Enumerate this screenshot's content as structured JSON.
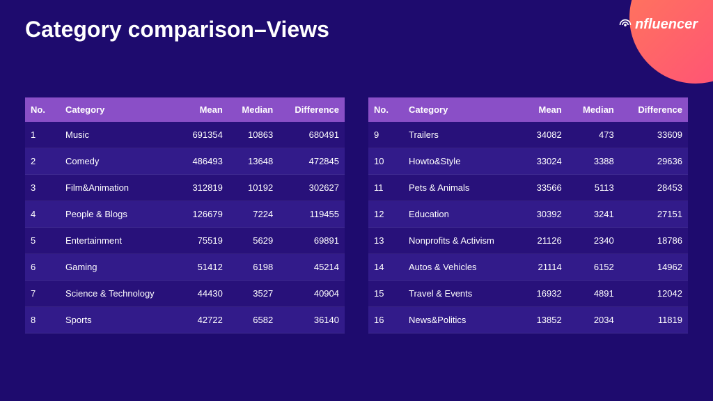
{
  "title": "Category comparison–Views",
  "brand": "nfluencer",
  "colors": {
    "background": "#1e0b6e",
    "header_row": "#8a4fc7",
    "row_odd": "#28117a",
    "row_even": "#321b8a",
    "badge_gradient_from": "#ff7a59",
    "badge_gradient_to": "#ff4d7a",
    "text": "#ffffff"
  },
  "typography": {
    "title_fontsize": 32,
    "title_weight": 700,
    "table_fontsize": 13,
    "header_weight": 600
  },
  "columns": [
    "No.",
    "Category",
    "Mean",
    "Median",
    "Difference"
  ],
  "column_align": [
    "left",
    "left",
    "right",
    "right",
    "right"
  ],
  "left_rows": [
    [
      "1",
      "Music",
      "691354",
      "10863",
      "680491"
    ],
    [
      "2",
      "Comedy",
      "486493",
      "13648",
      "472845"
    ],
    [
      "3",
      "Film&Animation",
      "312819",
      "10192",
      "302627"
    ],
    [
      "4",
      "People & Blogs",
      "126679",
      "7224",
      "119455"
    ],
    [
      "5",
      "Entertainment",
      "75519",
      "5629",
      "69891"
    ],
    [
      "6",
      "Gaming",
      "51412",
      "6198",
      "45214"
    ],
    [
      "7",
      "Science & Technology",
      "44430",
      "3527",
      "40904"
    ],
    [
      "8",
      "Sports",
      "42722",
      "6582",
      "36140"
    ]
  ],
  "right_rows": [
    [
      "9",
      "Trailers",
      "34082",
      "473",
      "33609"
    ],
    [
      "10",
      "Howto&Style",
      "33024",
      "3388",
      "29636"
    ],
    [
      "11",
      "Pets & Animals",
      "33566",
      "5113",
      "28453"
    ],
    [
      "12",
      "Education",
      "30392",
      "3241",
      "27151"
    ],
    [
      "13",
      "Nonprofits & Activism",
      "21126",
      "2340",
      "18786"
    ],
    [
      "14",
      "Autos & Vehicles",
      "21114",
      "6152",
      "14962"
    ],
    [
      "15",
      "Travel & Events",
      "16932",
      "4891",
      "12042"
    ],
    [
      "16",
      "News&Politics",
      "13852",
      "2034",
      "11819"
    ]
  ]
}
